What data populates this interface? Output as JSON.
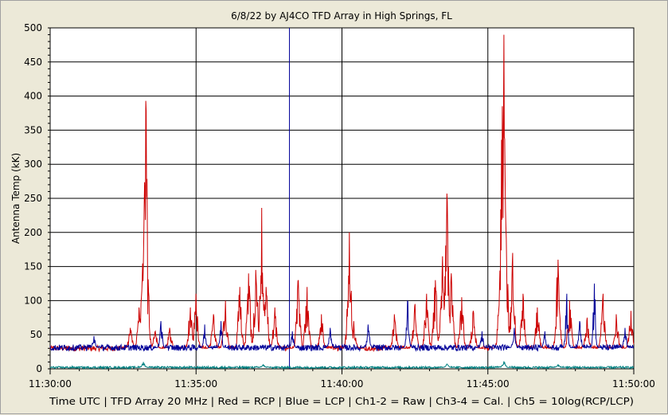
{
  "chart_data": {
    "type": "line",
    "title": "6/8/22  by  AJ4CO TFD Array  in  High Springs, FL",
    "ylabel": "Antenna Temp (kK)",
    "xlabel": "Time UTC | TFD Array 20 MHz | Red = RCP | Blue = LCP | Ch1-2 = Raw | Ch3-4 = Cal. | Ch5 = 10log(RCP/LCP)",
    "ylim": [
      0,
      500
    ],
    "xlim_minutes": [
      0,
      20
    ],
    "y_ticks": [
      0,
      50,
      100,
      150,
      200,
      250,
      300,
      350,
      400,
      450,
      500
    ],
    "y_tick_labels": [
      "0",
      "50",
      "100",
      "150",
      "200",
      "250",
      "300",
      "350",
      "400",
      "450",
      "500"
    ],
    "x_ticks_minutes": [
      0,
      5,
      10,
      15,
      20
    ],
    "x_tick_labels": [
      "11:30:00",
      "11:35:00",
      "11:40:00",
      "11:45:00",
      "11:50:00"
    ],
    "marker_minute": 8.2,
    "grid": true,
    "colors": {
      "rcp": "#cc0000",
      "lcp": "#000099",
      "ch5": "#008080",
      "marker": "#000099",
      "grid": "#000000",
      "plot_bg": "#ffffff"
    },
    "series": [
      {
        "name": "Red = RCP",
        "baseline": 30,
        "spikes": [
          {
            "t": 2.75,
            "v": 60
          },
          {
            "t": 3.05,
            "v": 90
          },
          {
            "t": 3.15,
            "v": 130
          },
          {
            "t": 3.22,
            "v": 240
          },
          {
            "t": 3.28,
            "v": 393
          },
          {
            "t": 3.35,
            "v": 80
          },
          {
            "t": 3.6,
            "v": 55
          },
          {
            "t": 4.1,
            "v": 60
          },
          {
            "t": 4.8,
            "v": 90
          },
          {
            "t": 5.0,
            "v": 110
          },
          {
            "t": 5.6,
            "v": 80
          },
          {
            "t": 6.0,
            "v": 100
          },
          {
            "t": 6.5,
            "v": 120
          },
          {
            "t": 6.8,
            "v": 140
          },
          {
            "t": 7.05,
            "v": 145
          },
          {
            "t": 7.25,
            "v": 236
          },
          {
            "t": 7.4,
            "v": 120
          },
          {
            "t": 7.7,
            "v": 90
          },
          {
            "t": 8.5,
            "v": 130
          },
          {
            "t": 8.8,
            "v": 120
          },
          {
            "t": 9.3,
            "v": 80
          },
          {
            "t": 10.25,
            "v": 200
          },
          {
            "t": 10.4,
            "v": 70
          },
          {
            "t": 11.8,
            "v": 80
          },
          {
            "t": 12.5,
            "v": 95
          },
          {
            "t": 12.9,
            "v": 110
          },
          {
            "t": 13.2,
            "v": 130
          },
          {
            "t": 13.45,
            "v": 165
          },
          {
            "t": 13.6,
            "v": 257
          },
          {
            "t": 13.75,
            "v": 140
          },
          {
            "t": 14.1,
            "v": 105
          },
          {
            "t": 14.5,
            "v": 85
          },
          {
            "t": 15.4,
            "v": 120
          },
          {
            "t": 15.5,
            "v": 385
          },
          {
            "t": 15.55,
            "v": 490
          },
          {
            "t": 15.65,
            "v": 150
          },
          {
            "t": 15.85,
            "v": 170
          },
          {
            "t": 16.2,
            "v": 110
          },
          {
            "t": 16.7,
            "v": 90
          },
          {
            "t": 17.4,
            "v": 160
          },
          {
            "t": 17.8,
            "v": 100
          },
          {
            "t": 18.4,
            "v": 75
          },
          {
            "t": 18.95,
            "v": 110
          },
          {
            "t": 19.4,
            "v": 80
          },
          {
            "t": 19.9,
            "v": 85
          }
        ]
      },
      {
        "name": "Blue = LCP",
        "baseline": 31,
        "spikes": [
          {
            "t": 1.5,
            "v": 48
          },
          {
            "t": 3.8,
            "v": 70
          },
          {
            "t": 5.3,
            "v": 65
          },
          {
            "t": 5.85,
            "v": 70
          },
          {
            "t": 8.3,
            "v": 55
          },
          {
            "t": 9.6,
            "v": 60
          },
          {
            "t": 10.9,
            "v": 65
          },
          {
            "t": 12.25,
            "v": 100
          },
          {
            "t": 14.8,
            "v": 55
          },
          {
            "t": 15.9,
            "v": 60
          },
          {
            "t": 16.95,
            "v": 55
          },
          {
            "t": 17.7,
            "v": 110
          },
          {
            "t": 18.15,
            "v": 70
          },
          {
            "t": 18.65,
            "v": 125
          },
          {
            "t": 19.7,
            "v": 60
          }
        ]
      },
      {
        "name": "Ch5 = 10log(RCP/LCP)",
        "baseline": 2,
        "spikes": [
          {
            "t": 3.2,
            "v": 10
          },
          {
            "t": 7.3,
            "v": 6
          },
          {
            "t": 13.6,
            "v": 7
          },
          {
            "t": 15.55,
            "v": 11
          },
          {
            "t": 17.4,
            "v": 6
          }
        ]
      }
    ]
  }
}
